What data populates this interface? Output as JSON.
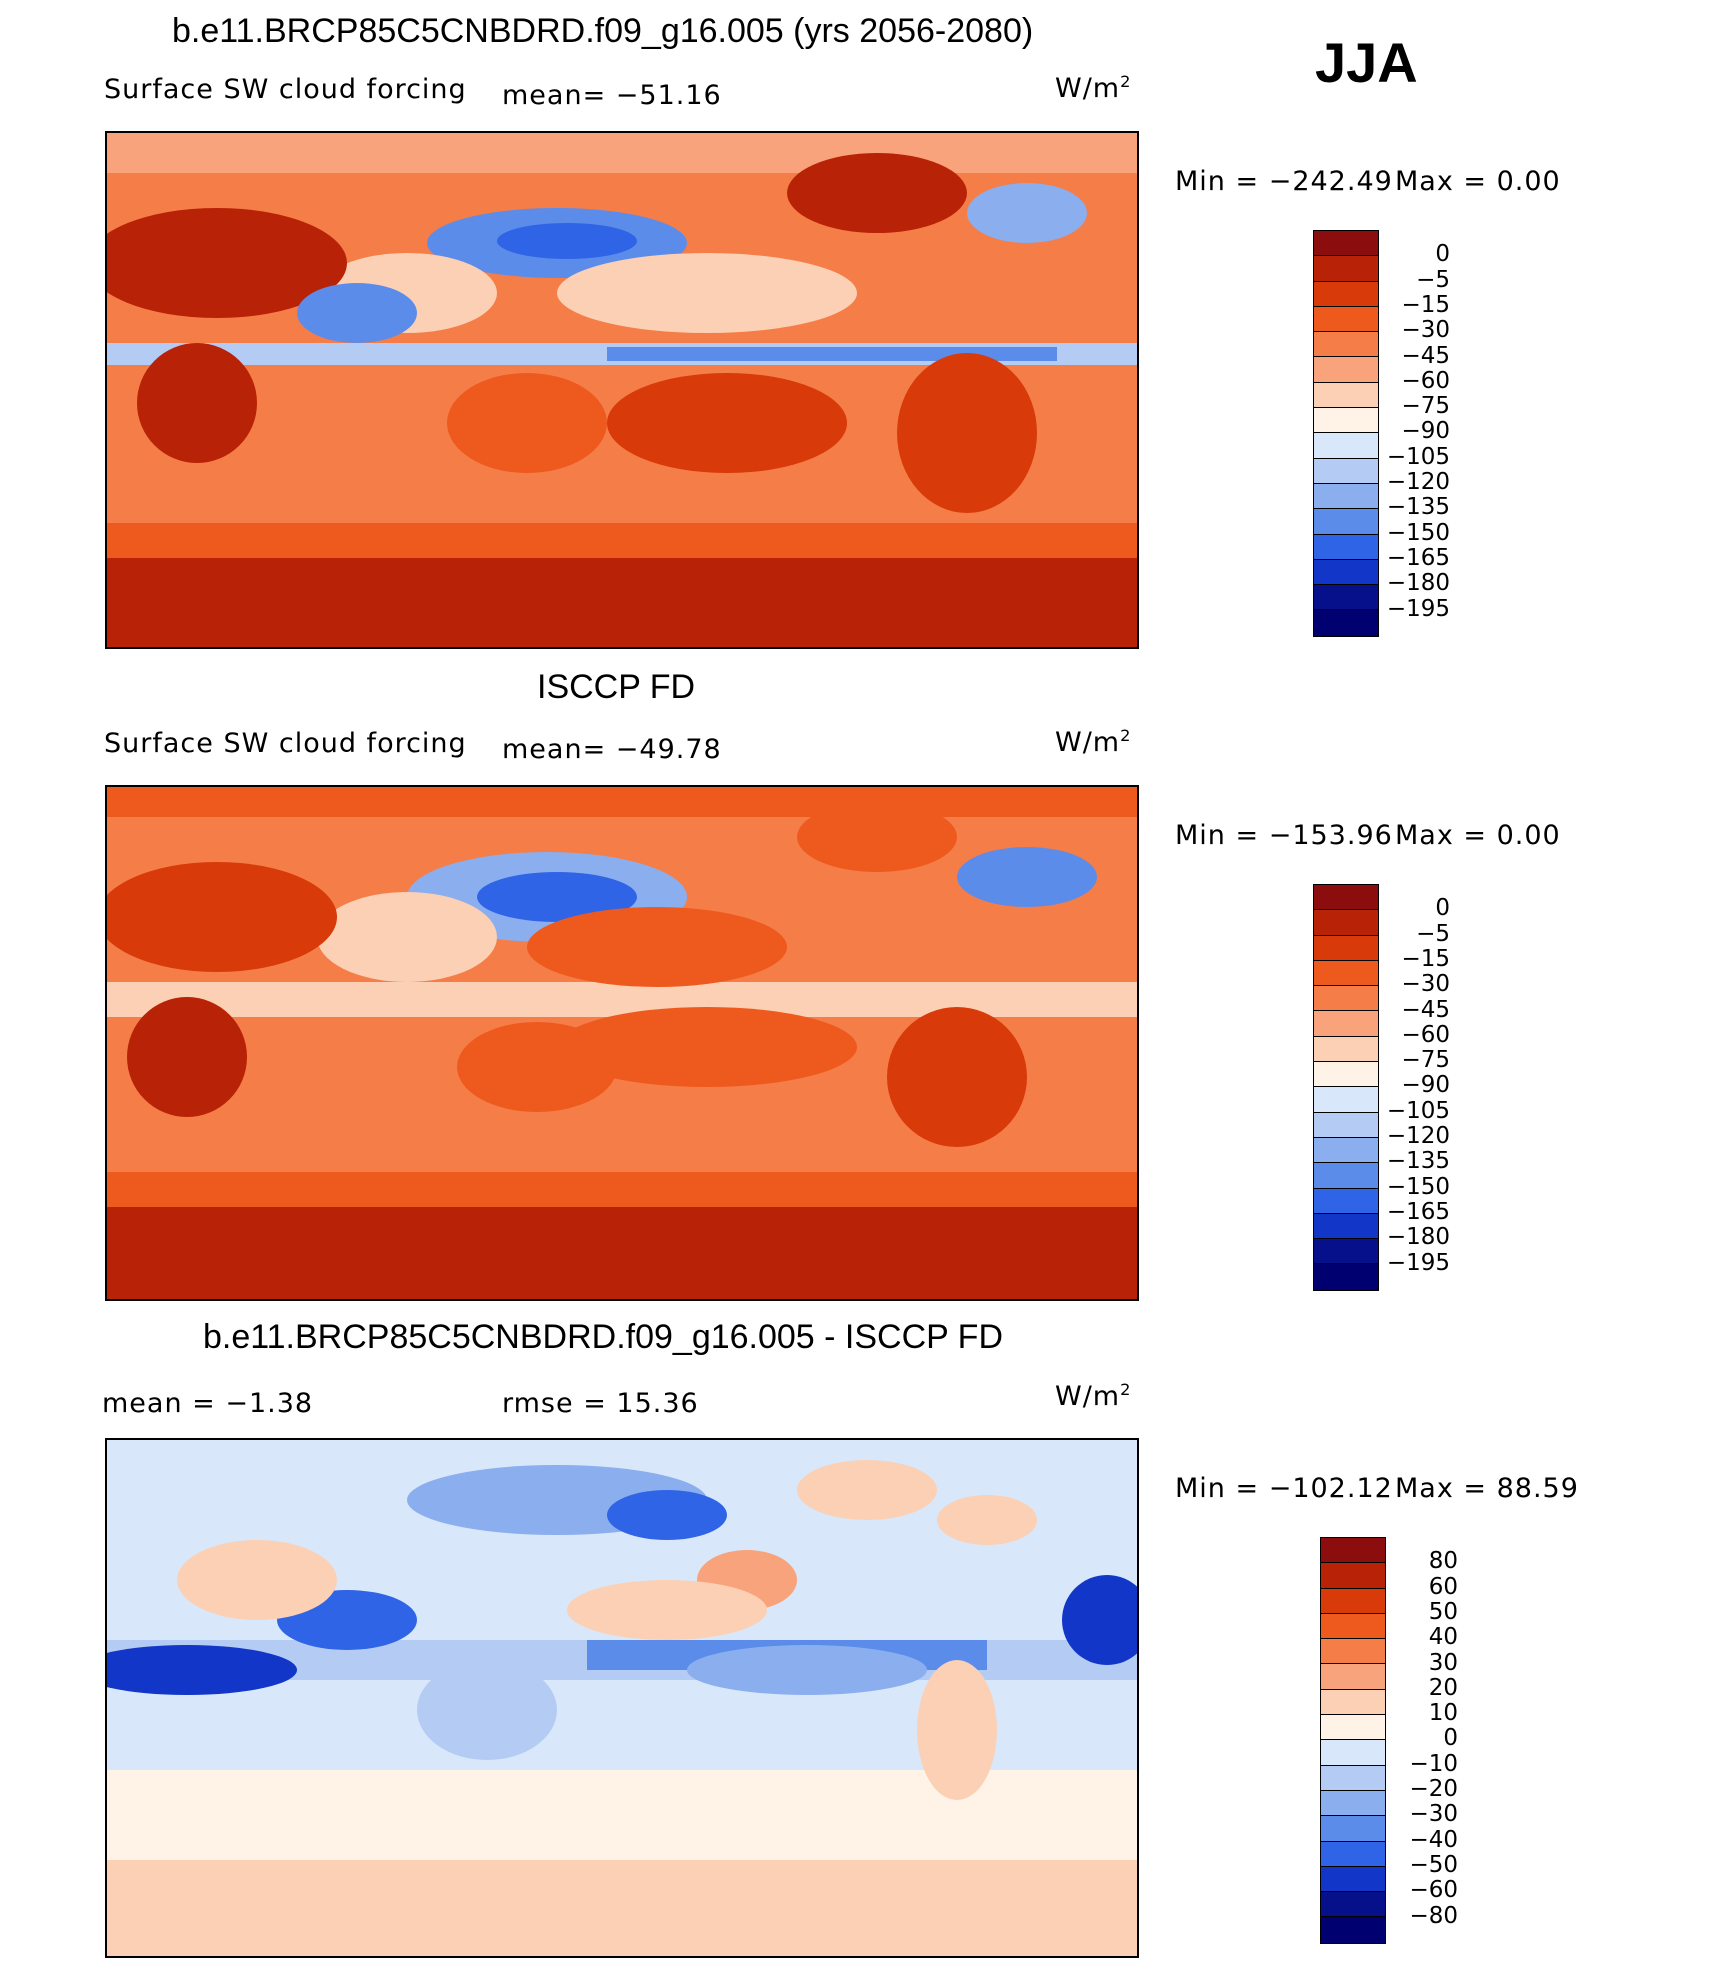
{
  "season": "JJA",
  "panels": [
    {
      "title": "b.e11.BRCP85C5CNBDRD.f09_g16.005 (yrs 2056-2080)",
      "variable": "Surface SW cloud forcing",
      "stat1": "mean= −51.16",
      "stat2": "",
      "units": "W/m",
      "units_sup": "2",
      "minmax_min": "Min  =  −242.49",
      "minmax_max": "Max  =     0.00"
    },
    {
      "title": "ISCCP FD",
      "variable": "Surface SW cloud forcing",
      "stat1": "mean= −49.78",
      "stat2": "",
      "units": "W/m",
      "units_sup": "2",
      "minmax_min": "Min  =  −153.96",
      "minmax_max": "Max  =     0.00"
    },
    {
      "title": "b.e11.BRCP85C5CNBDRD.f09_g16.005 - ISCCP FD",
      "variable": "mean =   −1.38",
      "stat1": "",
      "stat2": "rmse =   15.36",
      "units": "W/m",
      "units_sup": "2",
      "minmax_min": "Min  =  −102.12",
      "minmax_max": "Max  =   88.59"
    }
  ],
  "colorbars": [
    {
      "labels": [
        "0",
        "−5",
        "−15",
        "−30",
        "−45",
        "−60",
        "−75",
        "−90",
        "−105",
        "−120",
        "−135",
        "−150",
        "−165",
        "−180",
        "−195"
      ],
      "colors": [
        "#8b0d0d",
        "#b82206",
        "#d83a0a",
        "#ee5a1e",
        "#f57d48",
        "#f9a37c",
        "#fcd0b4",
        "#fff2e6",
        "#d8e8fa",
        "#b4ccf4",
        "#8aaeee",
        "#5c8cea",
        "#2f64e6",
        "#1236c8",
        "#06108a",
        "#000070"
      ]
    },
    {
      "labels": [
        "0",
        "−5",
        "−15",
        "−30",
        "−45",
        "−60",
        "−75",
        "−90",
        "−105",
        "−120",
        "−135",
        "−150",
        "−165",
        "−180",
        "−195"
      ],
      "colors": [
        "#8b0d0d",
        "#b82206",
        "#d83a0a",
        "#ee5a1e",
        "#f57d48",
        "#f9a37c",
        "#fcd0b4",
        "#fff2e6",
        "#d8e8fa",
        "#b4ccf4",
        "#8aaeee",
        "#5c8cea",
        "#2f64e6",
        "#1236c8",
        "#06108a",
        "#000070"
      ]
    },
    {
      "labels": [
        "80",
        "60",
        "50",
        "40",
        "30",
        "20",
        "10",
        "0",
        "−10",
        "−20",
        "−30",
        "−40",
        "−50",
        "−60",
        "−80"
      ],
      "colors": [
        "#8b0d0d",
        "#b82206",
        "#d83a0a",
        "#ee5a1e",
        "#f57d48",
        "#f9a37c",
        "#fcd0b4",
        "#fff2e6",
        "#d8e8fa",
        "#b4ccf4",
        "#8aaeee",
        "#5c8cea",
        "#2f64e6",
        "#1236c8",
        "#06108a",
        "#000070"
      ]
    }
  ]
}
